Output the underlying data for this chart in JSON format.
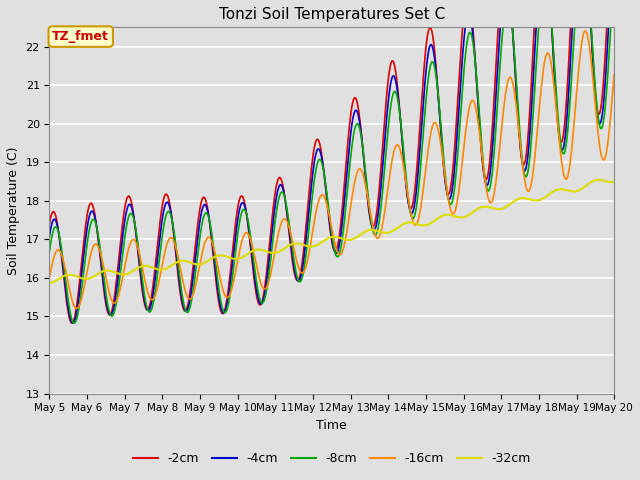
{
  "title": "Tonzi Soil Temperatures Set C",
  "xlabel": "Time",
  "ylabel": "Soil Temperature (C)",
  "ylim": [
    13.0,
    22.5
  ],
  "yticks": [
    13.0,
    14.0,
    15.0,
    16.0,
    17.0,
    18.0,
    19.0,
    20.0,
    21.0,
    22.0
  ],
  "xlim": [
    0,
    15
  ],
  "background_color": "#e0e0e0",
  "plot_bg_color": "#e0e0e0",
  "annotation_text": "TZ_fmet",
  "annotation_box_color": "#ffffcc",
  "annotation_border_color": "#cc9900",
  "annotation_text_color": "#cc0000",
  "series": [
    {
      "label": "-2cm",
      "color": "#dd0000",
      "linewidth": 1.2
    },
    {
      "label": "-4cm",
      "color": "#0000cc",
      "linewidth": 1.2
    },
    {
      "label": "-8cm",
      "color": "#00aa00",
      "linewidth": 1.2
    },
    {
      "label": "-16cm",
      "color": "#ff8800",
      "linewidth": 1.2
    },
    {
      "label": "-32cm",
      "color": "#dddd00",
      "linewidth": 1.5
    }
  ],
  "xtick_labels": [
    "May 5",
    "May 6",
    "May 7",
    "May 8",
    "May 9",
    "May 10",
    "May 11",
    "May 12",
    "May 13",
    "May 14",
    "May 15",
    "May 16",
    "May 17",
    "May 18",
    "May 19",
    "May 20"
  ],
  "grid_color": "white",
  "grid_linewidth": 1.2,
  "num_points": 720
}
